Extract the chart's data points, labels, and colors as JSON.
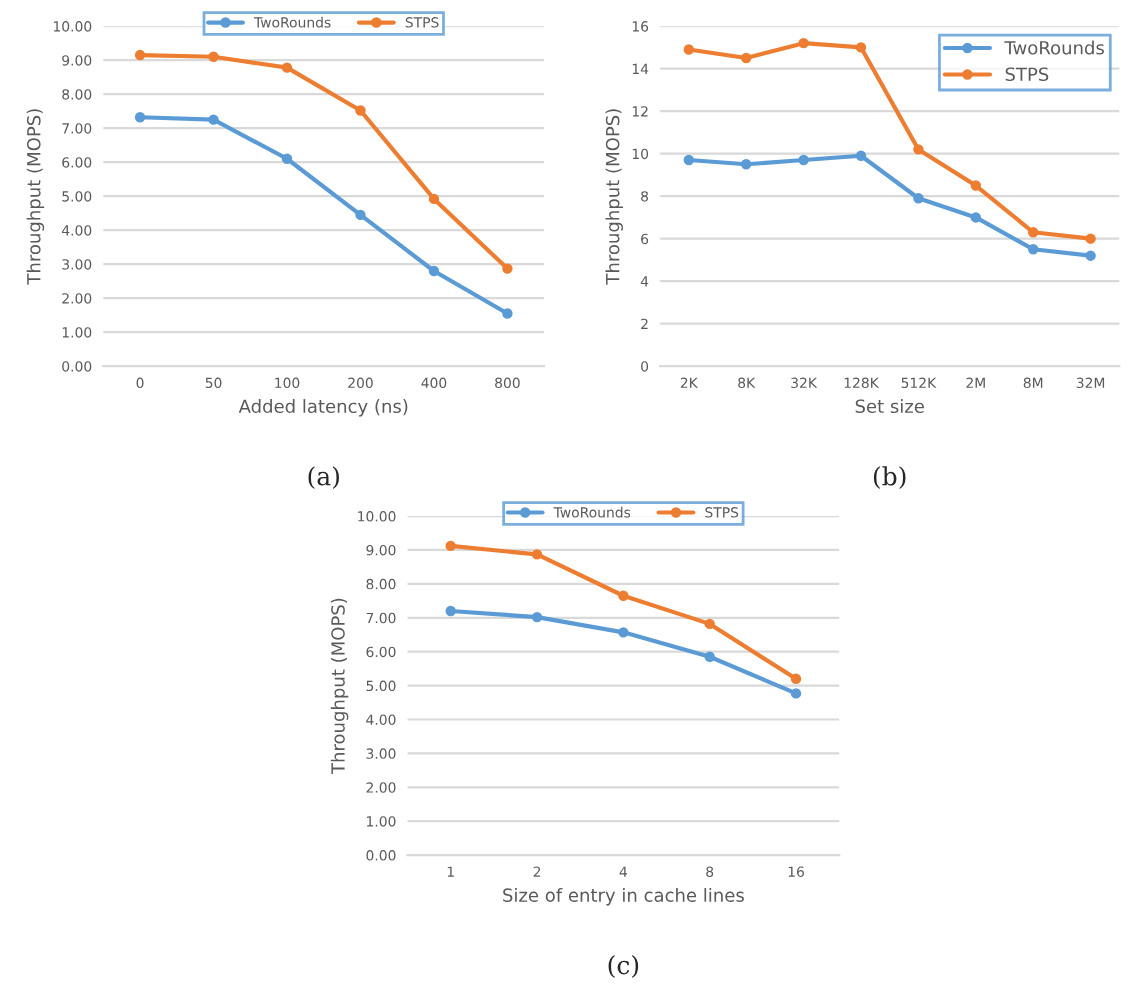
{
  "chart_data": [
    {
      "type": "line",
      "categories": [
        "0",
        "50",
        "100",
        "200",
        "400",
        "800"
      ],
      "xlabel": "Added latency (ns)",
      "ylabel": "Throughput (MOPS)",
      "ylim": [
        0,
        10
      ],
      "yticks": [
        {
          "value": 0,
          "label": "0.00"
        },
        {
          "value": 1,
          "label": "1.00"
        },
        {
          "value": 2,
          "label": "2.00"
        },
        {
          "value": 3,
          "label": "3.00"
        },
        {
          "value": 4,
          "label": "4.00"
        },
        {
          "value": 5,
          "label": "5.00"
        },
        {
          "value": 6,
          "label": "6.00"
        },
        {
          "value": 7,
          "label": "7.00"
        },
        {
          "value": 8,
          "label": "8.00"
        },
        {
          "value": 9,
          "label": "9.00"
        },
        {
          "value": 10,
          "label": "10.00"
        }
      ],
      "grid": "y",
      "legend": "top",
      "marker": "circle",
      "annotations": [
        "(a)"
      ],
      "series": [
        {
          "name": "TwoRounds",
          "color": "#5b9bd5",
          "values": [
            7.32,
            7.25,
            6.1,
            4.45,
            2.8,
            1.55
          ]
        },
        {
          "name": "STPS",
          "color": "#ed7d31",
          "values": [
            9.15,
            9.1,
            8.78,
            7.52,
            4.92,
            2.87
          ]
        }
      ]
    },
    {
      "type": "line",
      "categories": [
        "2K",
        "8K",
        "32K",
        "128K",
        "512K",
        "2M",
        "8M",
        "32M"
      ],
      "xlabel": "Set size",
      "ylabel": "Throughput (MOPS)",
      "ylim": [
        0,
        16
      ],
      "yticks": [
        0,
        2,
        4,
        6,
        8,
        10,
        12,
        14,
        16
      ],
      "grid": "y",
      "legend": "top right",
      "marker": "circle",
      "annotations": [
        "(b)"
      ],
      "series": [
        {
          "name": "TwoRounds",
          "color": "#5b9bd5",
          "values": [
            9.7,
            9.5,
            9.7,
            9.9,
            7.9,
            7.0,
            5.5,
            5.2
          ]
        },
        {
          "name": "STPS",
          "color": "#ed7d31",
          "values": [
            14.9,
            14.5,
            15.2,
            15.0,
            10.2,
            8.5,
            6.3,
            6.0
          ]
        }
      ]
    },
    {
      "type": "line",
      "categories": [
        "1",
        "2",
        "4",
        "8",
        "16"
      ],
      "xlabel": "Size of entry in cache lines",
      "ylabel": "Throughput (MOPS)",
      "ylim": [
        0,
        10
      ],
      "yticks": [
        {
          "value": 0,
          "label": "0.00"
        },
        {
          "value": 1,
          "label": "1.00"
        },
        {
          "value": 2,
          "label": "2.00"
        },
        {
          "value": 3,
          "label": "3.00"
        },
        {
          "value": 4,
          "label": "4.00"
        },
        {
          "value": 5,
          "label": "5.00"
        },
        {
          "value": 6,
          "label": "6.00"
        },
        {
          "value": 7,
          "label": "7.00"
        },
        {
          "value": 8,
          "label": "8.00"
        },
        {
          "value": 9,
          "label": "9.00"
        },
        {
          "value": 10,
          "label": "10.00"
        }
      ],
      "grid": "y",
      "legend": "top",
      "marker": "circle",
      "annotations": [
        "(c)"
      ],
      "series": [
        {
          "name": "TwoRounds",
          "color": "#5b9bd5",
          "values": [
            7.2,
            7.02,
            6.57,
            5.85,
            4.77
          ]
        },
        {
          "name": "STPS",
          "color": "#ed7d31",
          "values": [
            9.12,
            8.87,
            7.65,
            6.82,
            5.2
          ]
        }
      ]
    }
  ]
}
